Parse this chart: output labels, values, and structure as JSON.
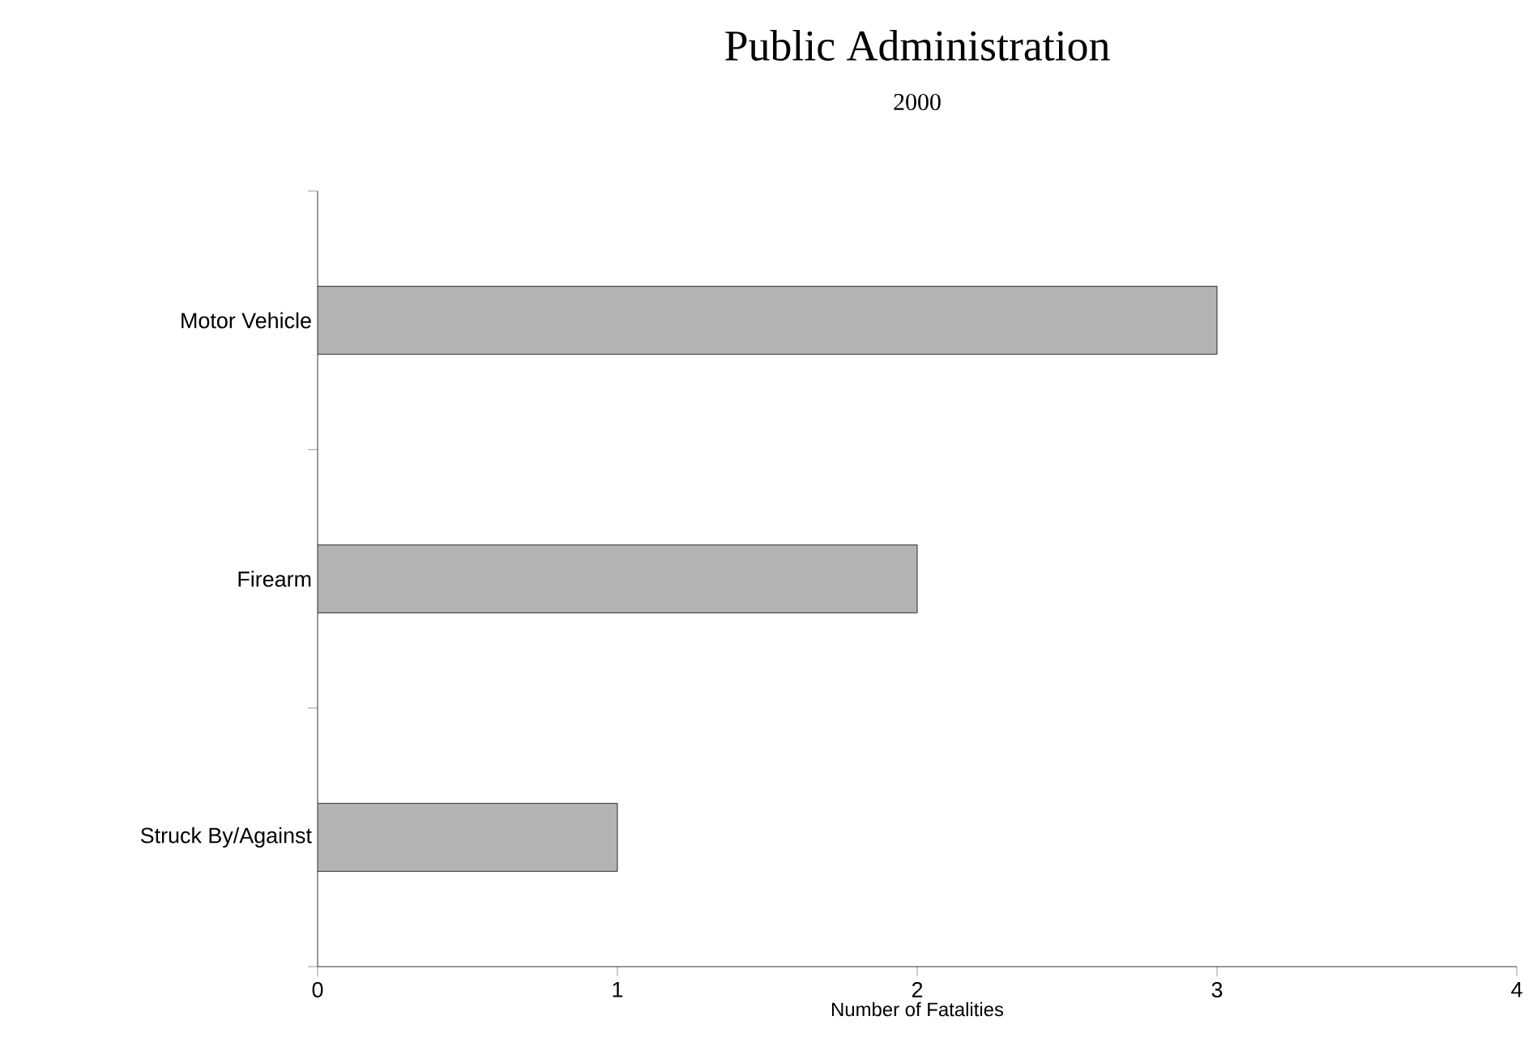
{
  "chart_data": {
    "type": "bar",
    "orientation": "horizontal",
    "title": "Public Administration",
    "subtitle": "2000",
    "xlabel": "Number of Fatalities",
    "categories": [
      "Motor Vehicle",
      "Firearm",
      "Struck By/Against"
    ],
    "values": [
      3,
      2,
      1
    ],
    "color": "#b3b3b3",
    "xlim": [
      0,
      4
    ],
    "xticks": [
      0,
      1,
      2,
      3,
      4
    ],
    "grid": false
  }
}
